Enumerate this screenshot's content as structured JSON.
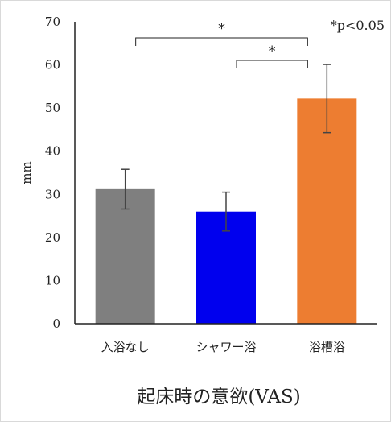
{
  "chart_data": {
    "type": "bar",
    "categories": [
      "入浴なし",
      "シャワー浴",
      "浴槽浴"
    ],
    "values": [
      31.2,
      26.0,
      52.2
    ],
    "error": [
      4.6,
      4.5,
      7.9
    ],
    "colors": [
      "#7f7f7f",
      "#0000ee",
      "#ed7d31"
    ],
    "title": "起床時の意欲(VAS)",
    "xlabel": "",
    "ylabel": "mm",
    "ylim": [
      0,
      70
    ],
    "yticks": [
      0,
      10,
      20,
      30,
      40,
      50,
      60,
      70
    ],
    "grid": false,
    "legend": "none",
    "significance": [
      {
        "from": 0,
        "to": 2,
        "label": "*"
      },
      {
        "from": 1,
        "to": 2,
        "label": "*"
      }
    ],
    "note": "*p<0.05"
  }
}
